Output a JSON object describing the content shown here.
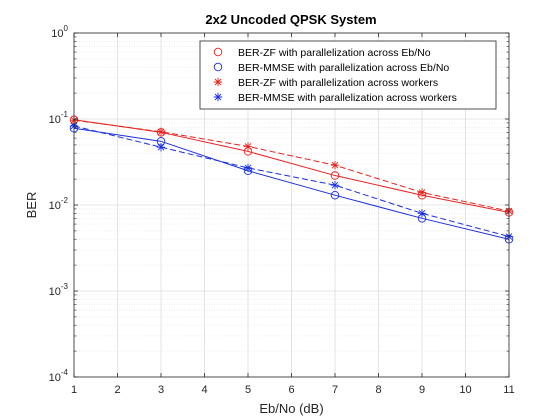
{
  "chart_data": {
    "type": "line",
    "title": "2x2 Uncoded QPSK System",
    "xlabel": "Eb/No (dB)",
    "ylabel": "BER",
    "xlim": [
      1,
      11
    ],
    "ylim": [
      0.0001,
      1
    ],
    "yscale": "log",
    "grid": true,
    "minor_grid": true,
    "legend_position": "top-right",
    "x_ticks": [
      1,
      2,
      3,
      4,
      5,
      6,
      7,
      8,
      9,
      10,
      11
    ],
    "x_tick_labels": [
      "1",
      "2",
      "3",
      "4",
      "5",
      "6",
      "7",
      "8",
      "9",
      "10",
      "11"
    ],
    "y_ticks": [
      {
        "value": 1,
        "base": "10",
        "exp": "0"
      },
      {
        "value": 0.1,
        "base": "10",
        "exp": "-1"
      },
      {
        "value": 0.01,
        "base": "10",
        "exp": "-2"
      },
      {
        "value": 0.001,
        "base": "10",
        "exp": "-3"
      },
      {
        "value": 0.0001,
        "base": "10",
        "exp": "-4"
      }
    ],
    "series": [
      {
        "name": "BER-ZF with parallelization across Eb/No",
        "color": "#e8231f",
        "marker": "circle",
        "dash": "solid",
        "x": [
          1,
          3,
          5,
          7,
          9,
          11
        ],
        "y": [
          0.098,
          0.07,
          0.042,
          0.022,
          0.013,
          0.0082
        ]
      },
      {
        "name": "BER-MMSE with parallelization across Eb/No",
        "color": "#1a2ee0",
        "marker": "circle",
        "dash": "solid",
        "x": [
          1,
          3,
          5,
          7,
          9,
          11
        ],
        "y": [
          0.078,
          0.055,
          0.025,
          0.013,
          0.007,
          0.004
        ]
      },
      {
        "name": "BER-ZF with parallelization across workers",
        "color": "#e8231f",
        "marker": "star",
        "dash": "dashed",
        "x": [
          1,
          3,
          5,
          7,
          9,
          11
        ],
        "y": [
          0.097,
          0.071,
          0.048,
          0.029,
          0.014,
          0.0085
        ]
      },
      {
        "name": "BER-MMSE with parallelization across workers",
        "color": "#1a2ee0",
        "marker": "star",
        "dash": "dashed",
        "x": [
          1,
          3,
          5,
          7,
          9,
          11
        ],
        "y": [
          0.083,
          0.047,
          0.027,
          0.017,
          0.008,
          0.0043
        ]
      }
    ]
  }
}
